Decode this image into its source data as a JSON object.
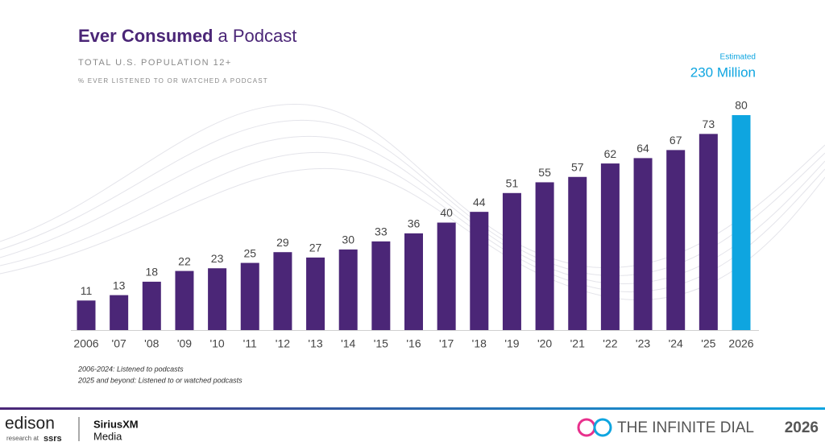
{
  "chart_data": {
    "type": "bar",
    "title": [
      "Ever Consumed",
      "a Podcast"
    ],
    "subtitle": "TOTAL U.S. POPULATION 12+",
    "y_label": "% EVER LISTENED TO OR WATCHED A PODCAST",
    "annotation": [
      "Estimated",
      "230 Million"
    ],
    "notes": [
      "2006-2024: Listened to podcasts",
      "2025 and beyond: Listened to or watched podcasts"
    ],
    "categories": [
      "2006",
      "'07",
      "'08",
      "'09",
      "'10",
      "'11",
      "'12",
      "'13",
      "'14",
      "'15",
      "'16",
      "'17",
      "'18",
      "'19",
      "'20",
      "'21",
      "'22",
      "'23",
      "'24",
      "'25",
      "2026"
    ],
    "values": [
      11,
      13,
      18,
      22,
      23,
      25,
      29,
      27,
      30,
      33,
      36,
      40,
      44,
      51,
      55,
      57,
      62,
      64,
      67,
      73,
      80
    ],
    "colors": [
      "#4b2677",
      "#4b2677",
      "#4b2677",
      "#4b2677",
      "#4b2677",
      "#4b2677",
      "#4b2677",
      "#4b2677",
      "#4b2677",
      "#4b2677",
      "#4b2677",
      "#4b2677",
      "#4b2677",
      "#4b2677",
      "#4b2677",
      "#4b2677",
      "#4b2677",
      "#4b2677",
      "#4b2677",
      "#4b2677",
      "#0ea5e0"
    ]
  },
  "footer": {
    "edison": "edison",
    "research_at": "research at",
    "ssrs": "ssrs",
    "siriusxm": "SiriusXM",
    "media": "Media",
    "infinite_dial": "THE INFINITE DIAL",
    "year": "2026"
  }
}
